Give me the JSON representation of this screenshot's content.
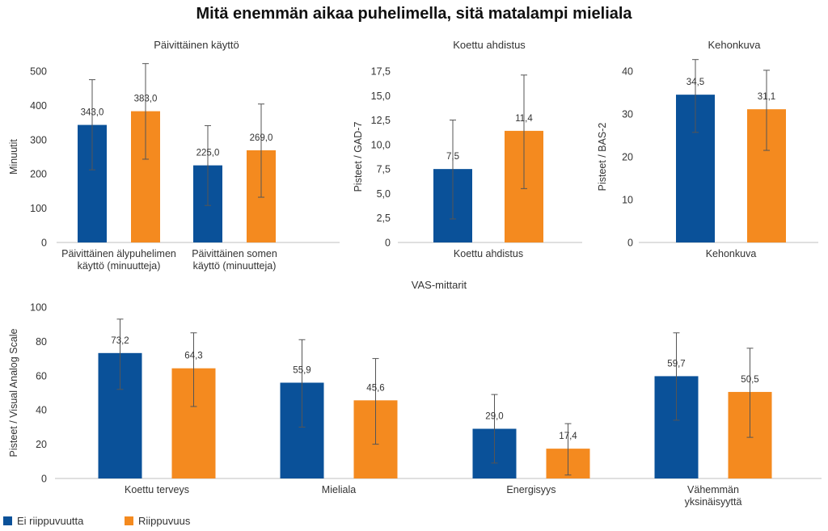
{
  "title": "Mitä enemmän aikaa puhelimella, sitä matalampi mieliala",
  "legend": {
    "items": [
      {
        "label": "Ei riippuvuutta",
        "color": "#0a5199"
      },
      {
        "label": "Riippuvuus",
        "color": "#f48a1f"
      }
    ]
  },
  "chart_data": [
    {
      "type": "bar",
      "title": "Päivittäinen käyttö",
      "ylabel": "Minuutit",
      "ylim": [
        0,
        500
      ],
      "yticks": [
        "0",
        "100",
        "200",
        "300",
        "400",
        "500"
      ],
      "categories": [
        [
          "Päivittäinen älypuhelimen",
          "käyttö (minuutteja)"
        ],
        [
          "Päivittäinen somen",
          "käyttö (minuutteja)"
        ]
      ],
      "series": [
        {
          "name": "Ei riippuvuutta",
          "values": [
            343.0,
            225.0
          ],
          "labels": [
            "343,0",
            "225,0"
          ],
          "error_low": [
            212,
            108
          ],
          "error_high": [
            475,
            341
          ]
        },
        {
          "name": "Riippuvuus",
          "values": [
            383.0,
            269.0
          ],
          "labels": [
            "383,0",
            "269,0"
          ],
          "error_low": [
            243,
            132
          ],
          "error_high": [
            522,
            404
          ]
        }
      ]
    },
    {
      "type": "bar",
      "title": "Koettu ahdistus",
      "ylabel": "Pisteet / GAD-7",
      "ylim": [
        0,
        17.5
      ],
      "yticks": [
        "0",
        "2,5",
        "5,0",
        "7,5",
        "10,0",
        "12,5",
        "15,0",
        "17,5"
      ],
      "categories": [
        [
          "Koettu ahdistus"
        ]
      ],
      "series": [
        {
          "name": "Ei riippuvuutta",
          "values": [
            7.5
          ],
          "labels": [
            "7,5"
          ],
          "error_low": [
            2.4
          ],
          "error_high": [
            12.5
          ]
        },
        {
          "name": "Riippuvuus",
          "values": [
            11.4
          ],
          "labels": [
            "11,4"
          ],
          "error_low": [
            5.5
          ],
          "error_high": [
            17.1
          ]
        }
      ]
    },
    {
      "type": "bar",
      "title": "Kehonkuva",
      "ylabel": "Pisteet / BAS-2",
      "ylim": [
        0,
        40
      ],
      "yticks": [
        "0",
        "10",
        "20",
        "30",
        "40"
      ],
      "categories": [
        [
          "Kehonkuva"
        ]
      ],
      "series": [
        {
          "name": "Ei riippuvuutta",
          "values": [
            34.5
          ],
          "labels": [
            "34,5"
          ],
          "error_low": [
            25.7
          ],
          "error_high": [
            42.7
          ]
        },
        {
          "name": "Riippuvuus",
          "values": [
            31.1
          ],
          "labels": [
            "31,1"
          ],
          "error_low": [
            21.5
          ],
          "error_high": [
            40.2
          ]
        }
      ]
    },
    {
      "type": "bar",
      "title": "VAS-mittarit",
      "ylabel": "Pisteet / Visual Analog Scale",
      "ylim": [
        0,
        100
      ],
      "yticks": [
        "0",
        "20",
        "40",
        "60",
        "80",
        "100"
      ],
      "categories": [
        [
          "Koettu terveys"
        ],
        [
          "Mieliala"
        ],
        [
          "Energisyys"
        ],
        [
          "Vähemmän",
          "yksinäisyyttä"
        ]
      ],
      "series": [
        {
          "name": "Ei riippuvuutta",
          "values": [
            73.2,
            55.9,
            29.0,
            59.7
          ],
          "labels": [
            "73,2",
            "55,9",
            "29,0",
            "59,7"
          ],
          "error_low": [
            52,
            30,
            9,
            34
          ],
          "error_high": [
            93,
            81,
            49,
            85
          ]
        },
        {
          "name": "Riippuvuus",
          "values": [
            64.3,
            45.6,
            17.4,
            50.5
          ],
          "labels": [
            "64,3",
            "45,6",
            "17,4",
            "50,5"
          ],
          "error_low": [
            42,
            20,
            2,
            24
          ],
          "error_high": [
            85,
            70,
            32,
            76
          ]
        }
      ]
    }
  ]
}
